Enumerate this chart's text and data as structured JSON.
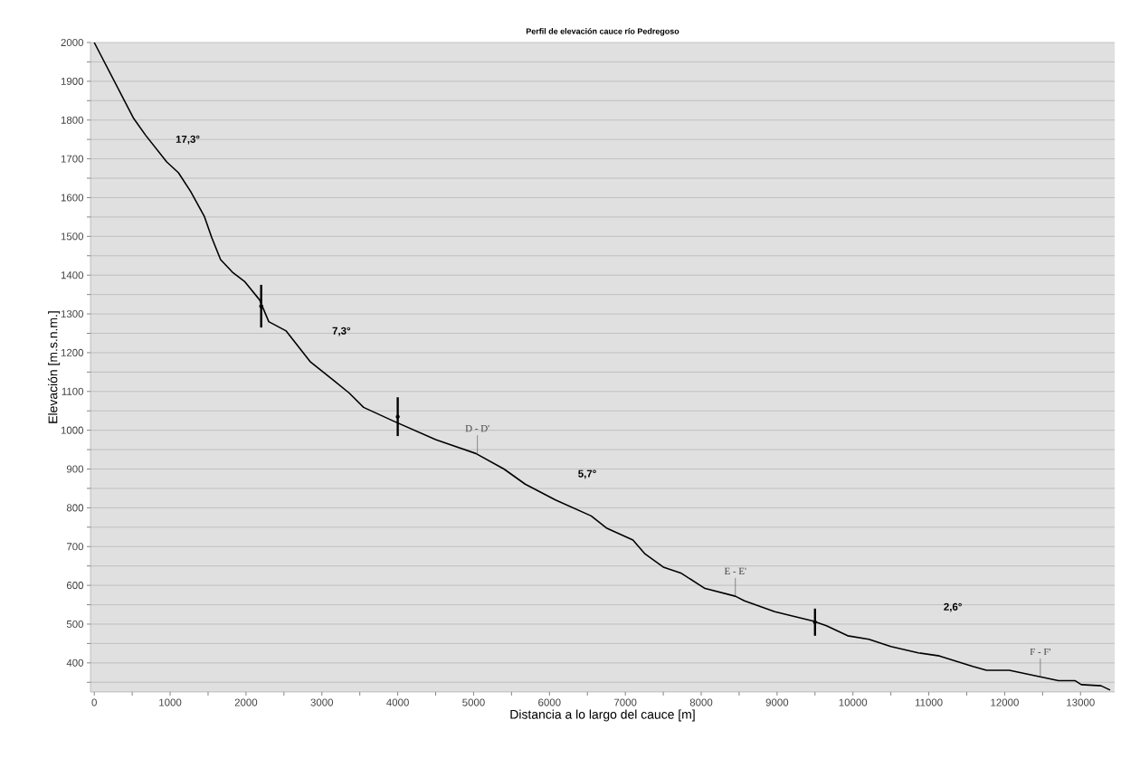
{
  "chart_data": {
    "type": "line",
    "title": "Perfil de elevación cauce río Pedregoso",
    "xlabel": "Distancia a lo largo del cauce [m]",
    "ylabel": "Elevación [m.s.n.m.]",
    "xlim": [
      -50,
      13450
    ],
    "ylim": [
      325,
      2000
    ],
    "xticks": [
      0,
      {
        "value": 500,
        "label": null
      },
      1000,
      {
        "value": 1500,
        "label": null
      },
      2000,
      {
        "value": 2500,
        "label": null
      },
      3000,
      {
        "value": 3500,
        "label": null
      },
      4000,
      {
        "value": 4500,
        "label": null
      },
      5000,
      {
        "value": 5500,
        "label": null
      },
      6000,
      {
        "value": 6500,
        "label": null
      },
      7000,
      {
        "value": 7500,
        "label": null
      },
      8000,
      {
        "value": 8500,
        "label": null
      },
      9000,
      {
        "value": 9500,
        "label": null
      },
      10000,
      {
        "value": 10500,
        "label": null
      },
      11000,
      {
        "value": 11500,
        "label": null
      },
      12000,
      {
        "value": 12500,
        "label": null
      },
      13000
    ],
    "yticks": [
      {
        "value": 350,
        "label": null
      },
      400,
      {
        "value": 450,
        "label": null
      },
      500,
      {
        "value": 550,
        "label": null
      },
      600,
      {
        "value": 650,
        "label": null
      },
      700,
      {
        "value": 750,
        "label": null
      },
      800,
      {
        "value": 850,
        "label": null
      },
      900,
      {
        "value": 950,
        "label": null
      },
      1000,
      {
        "value": 1050,
        "label": null
      },
      1100,
      {
        "value": 1150,
        "label": null
      },
      1200,
      {
        "value": 1250,
        "label": null
      },
      1300,
      {
        "value": 1350,
        "label": null
      },
      1400,
      {
        "value": 1450,
        "label": null
      },
      1500,
      {
        "value": 1550,
        "label": null
      },
      1600,
      {
        "value": 1650,
        "label": null
      },
      1700,
      {
        "value": 1750,
        "label": null
      },
      1800,
      {
        "value": 1850,
        "label": null
      },
      1900,
      {
        "value": 1950,
        "label": null
      },
      2000
    ],
    "grid": "y",
    "marker": "none",
    "series": [
      {
        "color": "#000000",
        "x": [
          0,
          520,
          680,
          955,
          1110,
          1270,
          1450,
          1550,
          1665,
          1820,
          1980,
          2180,
          2300,
          2530,
          2850,
          3160,
          3360,
          3550,
          3940,
          4500,
          5030,
          5400,
          5680,
          6080,
          6550,
          6750,
          7100,
          7260,
          7500,
          7730,
          8050,
          8450,
          8570,
          8970,
          9470,
          9650,
          9930,
          10210,
          10500,
          10860,
          11140,
          11580,
          11760,
          12060,
          12470,
          12710,
          12930,
          13010,
          13270,
          13390
        ],
        "values": [
          2000,
          1804,
          1760,
          1692,
          1664,
          1616,
          1552,
          1496,
          1440,
          1408,
          1384,
          1336,
          1280,
          1256,
          1176,
          1128,
          1096,
          1059,
          1024,
          976,
          940,
          900,
          861,
          820,
          779,
          748,
          717,
          681,
          647,
          632,
          592,
          572,
          560,
          532,
          508,
          496,
          470,
          461,
          442,
          426,
          418,
          391,
          381,
          381,
          364,
          354,
          354,
          344,
          341,
          330
        ]
      },
      {
        "type": "scatter",
        "color": "#000000",
        "x": [
          2200,
          4000,
          9500
        ],
        "values": [
          1320,
          1035,
          505
        ],
        "errors": [
          55,
          50,
          35
        ]
      }
    ],
    "annotations": [
      "**17,3°**",
      "**7,3°**",
      "**5,7°**",
      "**2,6°**",
      {
        "text": "D - D'",
        "x": 5050,
        "y": 940
      },
      {
        "text": "E - E'",
        "x": 8450,
        "y": 572
      },
      {
        "text": "F - F'",
        "x": 12470,
        "y": 364
      }
    ]
  }
}
